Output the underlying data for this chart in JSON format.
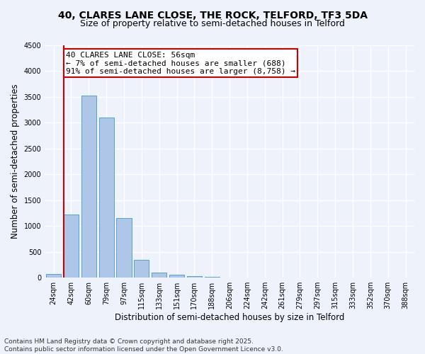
{
  "title_line1": "40, CLARES LANE CLOSE, THE ROCK, TELFORD, TF3 5DA",
  "title_line2": "Size of property relative to semi-detached houses in Telford",
  "xlabel": "Distribution of semi-detached houses by size in Telford",
  "ylabel": "Number of semi-detached properties",
  "categories": [
    "24sqm",
    "42sqm",
    "60sqm",
    "79sqm",
    "97sqm",
    "115sqm",
    "133sqm",
    "151sqm",
    "170sqm",
    "188sqm",
    "206sqm",
    "224sqm",
    "242sqm",
    "261sqm",
    "279sqm",
    "297sqm",
    "315sqm",
    "333sqm",
    "352sqm",
    "370sqm",
    "388sqm"
  ],
  "values": [
    75,
    1220,
    3520,
    3100,
    1160,
    340,
    105,
    60,
    30,
    10,
    0,
    0,
    0,
    0,
    0,
    0,
    0,
    0,
    0,
    0,
    0
  ],
  "bar_color": "#aec6e8",
  "bar_edge_color": "#5a9fd4",
  "annotation_text": "40 CLARES LANE CLOSE: 56sqm\n← 7% of semi-detached houses are smaller (688)\n91% of semi-detached houses are larger (8,758) →",
  "annotation_box_color": "#ffffff",
  "annotation_box_edge": "#cc0000",
  "vline_color": "#cc0000",
  "vline_x_index": 1,
  "ylim": [
    0,
    4500
  ],
  "yticks": [
    0,
    500,
    1000,
    1500,
    2000,
    2500,
    3000,
    3500,
    4000,
    4500
  ],
  "background_color": "#eef2fa",
  "plot_bg_color": "#eef2fa",
  "grid_color": "#ffffff",
  "footnote": "Contains HM Land Registry data © Crown copyright and database right 2025.\nContains public sector information licensed under the Open Government Licence v3.0.",
  "title_fontsize": 10,
  "subtitle_fontsize": 9,
  "axis_label_fontsize": 8.5,
  "tick_fontsize": 7,
  "annotation_fontsize": 8,
  "footnote_fontsize": 6.5
}
